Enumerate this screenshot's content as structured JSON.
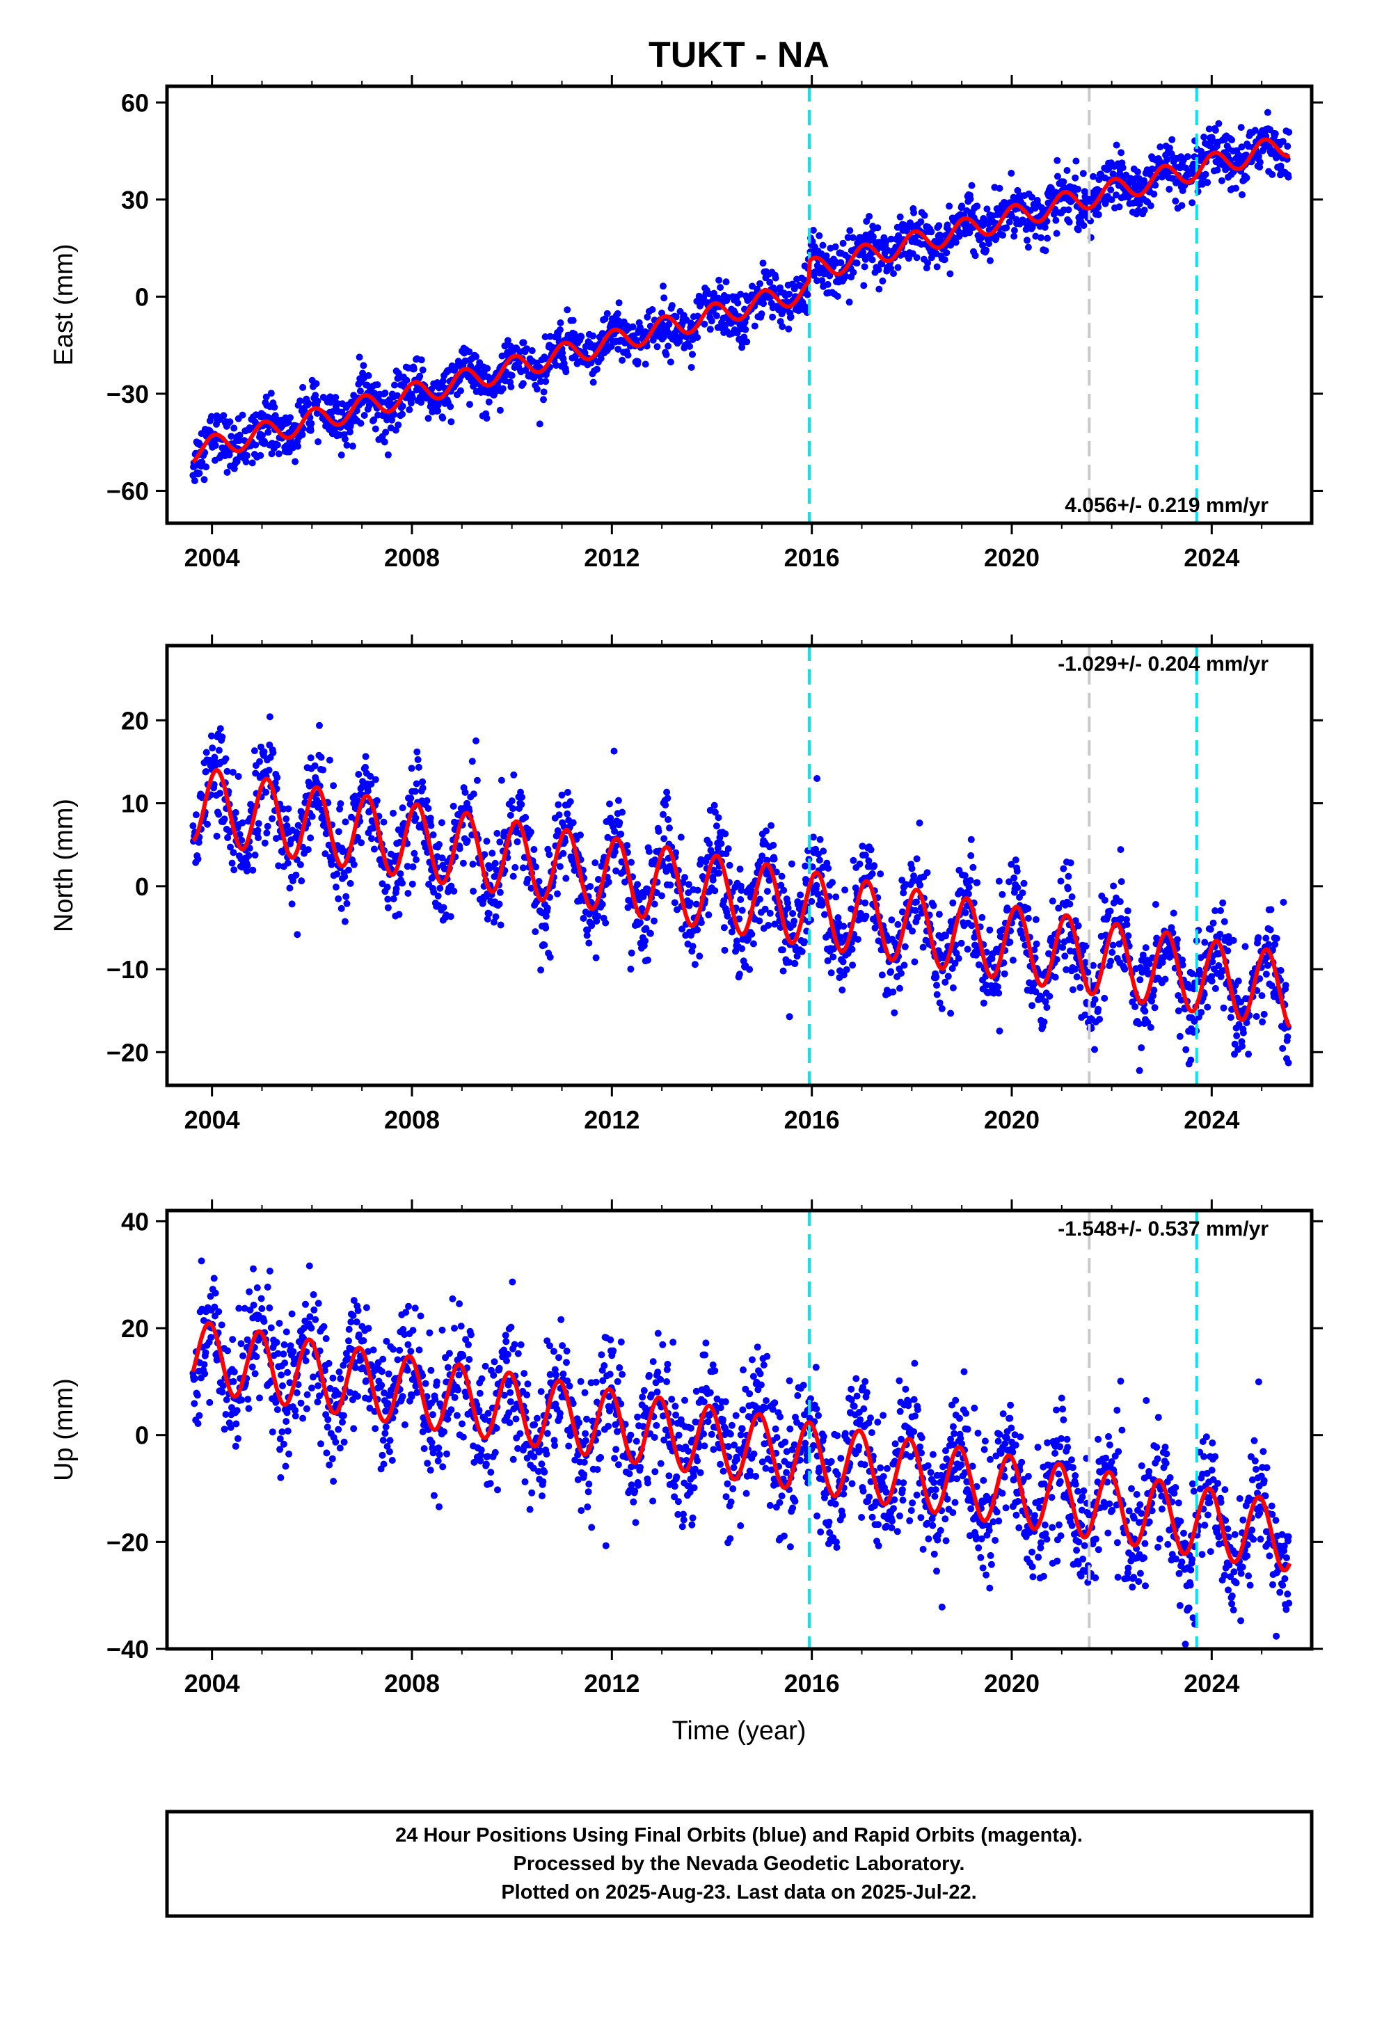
{
  "title": "TUKT - NA",
  "xlabel": "Time (year)",
  "footer": {
    "lines": [
      "24 Hour Positions Using Final Orbits (blue) and Rapid Orbits (magenta).",
      "Processed by the Nevada Geodetic Laboratory.",
      "Plotted on 2025-Aug-23. Last data on 2025-Jul-22."
    ]
  },
  "colors": {
    "data_points": "#0000ff",
    "model_fit": "#ff0000",
    "equipment_change": "#00e5ee",
    "earthquake_marker": "#c8c8c8"
  },
  "chart_data": [
    {
      "type": "scatter",
      "component": "East",
      "ylabel": "East (mm)",
      "rate_label": "4.056+/- 0.219 mm/yr",
      "rate_position": "bottom-right",
      "xlim": [
        2003.1,
        2026.0
      ],
      "ylim": [
        -70,
        65
      ],
      "x_ticks": [
        "2004",
        "2008",
        "2012",
        "2016",
        "2020",
        "2024"
      ],
      "y_ticks": [
        "60",
        "30",
        "0",
        "−30",
        "−60"
      ],
      "y_tick_values": [
        60,
        30,
        0,
        -30,
        -60
      ],
      "vlines_cyan": [
        2015.95,
        2023.7
      ],
      "vlines_gray": [
        2021.55
      ],
      "model": {
        "t0": 2003.6,
        "y0": -48,
        "rate": 4.056,
        "amplitude": 3.5,
        "phase_year": 0.8,
        "offsets": [
          {
            "at": 2015.95,
            "value": 6
          }
        ]
      },
      "scatter_noise": 4
    },
    {
      "type": "scatter",
      "component": "North",
      "ylabel": "North (mm)",
      "rate_label": "-1.029+/- 0.204 mm/yr",
      "rate_position": "top-right",
      "xlim": [
        2003.1,
        2026.0
      ],
      "ylim": [
        -24,
        29
      ],
      "x_ticks": [
        "2004",
        "2008",
        "2012",
        "2016",
        "2020",
        "2024"
      ],
      "y_ticks": [
        "20",
        "10",
        "0",
        "−10",
        "−20"
      ],
      "y_tick_values": [
        20,
        10,
        0,
        -10,
        -20
      ],
      "vlines_cyan": [
        2015.95,
        2023.7
      ],
      "vlines_gray": [
        2021.55
      ],
      "model": {
        "t0": 2003.6,
        "y0": 10,
        "rate": -1.029,
        "amplitude": 4.5,
        "phase_year": 0.85,
        "offsets": []
      },
      "scatter_noise": 3
    },
    {
      "type": "scatter",
      "component": "Up",
      "ylabel": "Up (mm)",
      "rate_label": "-1.548+/- 0.537 mm/yr",
      "rate_position": "top-right",
      "xlim": [
        2003.1,
        2026.0
      ],
      "ylim": [
        -40,
        42
      ],
      "x_ticks": [
        "2004",
        "2008",
        "2012",
        "2016",
        "2020",
        "2024"
      ],
      "y_ticks": [
        "40",
        "20",
        "0",
        "−20",
        "−40"
      ],
      "y_tick_values": [
        40,
        20,
        0,
        -20,
        -40
      ],
      "vlines_cyan": [
        2015.95,
        2023.7
      ],
      "vlines_gray": [
        2021.55
      ],
      "model": {
        "t0": 2003.6,
        "y0": 15,
        "rate": -1.548,
        "amplitude": 6.5,
        "phase_year": 0.7,
        "offsets": []
      },
      "scatter_noise": 6
    }
  ]
}
